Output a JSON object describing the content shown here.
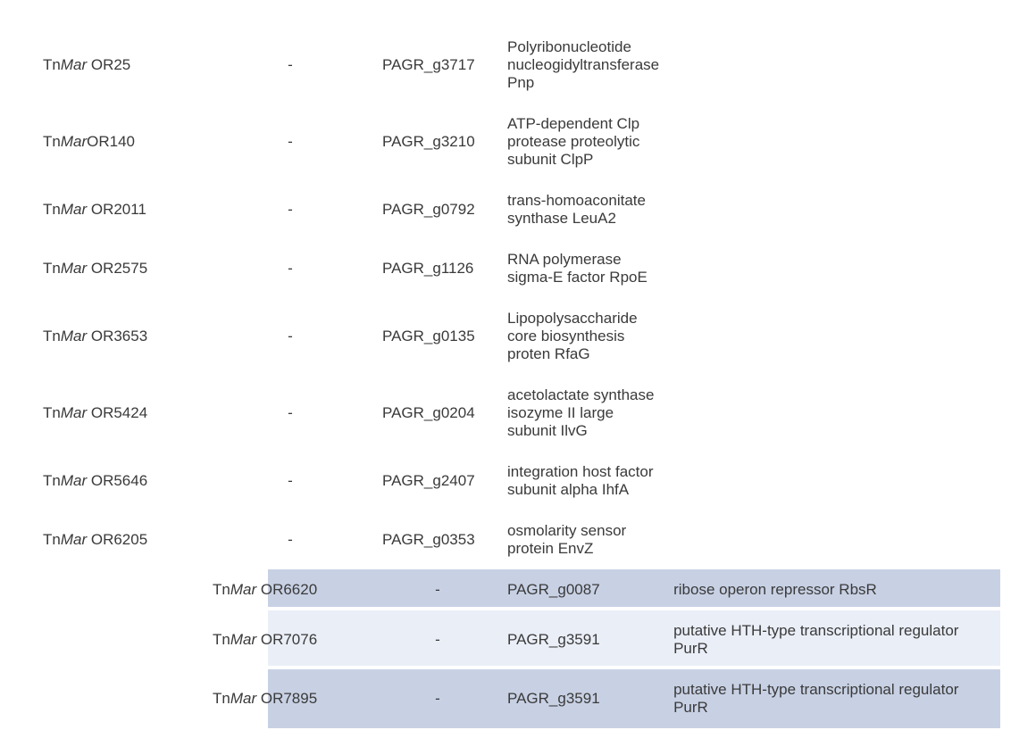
{
  "table": {
    "rows": [
      {
        "prefix": "Tn",
        "italic": "Mar",
        "suffix": " OR25",
        "dash": "-",
        "geneId": "PAGR_g3717",
        "description": "Polyribonucleotide nucleogidyltransferase Pnp",
        "highlight": "none"
      },
      {
        "prefix": "Tn",
        "italic": "Mar",
        "suffix": "OR140",
        "dash": "-",
        "geneId": "PAGR_g3210",
        "description": "ATP-dependent Clp protease proteolytic subunit ClpP",
        "highlight": "none"
      },
      {
        "prefix": "Tn",
        "italic": "Mar",
        "suffix": " OR2011",
        "dash": "-",
        "geneId": "PAGR_g0792",
        "description": "trans-homoaconitate synthase LeuA2",
        "highlight": "none"
      },
      {
        "prefix": "Tn",
        "italic": "Mar",
        "suffix": " OR2575",
        "dash": "-",
        "geneId": "PAGR_g1126",
        "description": "RNA polymerase sigma-E factor RpoE",
        "highlight": "none"
      },
      {
        "prefix": "Tn",
        "italic": "Mar",
        "suffix": " OR3653",
        "dash": "-",
        "geneId": "PAGR_g0135",
        "description": "Lipopolysaccharide core biosynthesis proten  RfaG",
        "highlight": "none"
      },
      {
        "prefix": "Tn",
        "italic": "Mar",
        "suffix": " OR5424",
        "dash": "-",
        "geneId": "PAGR_g0204",
        "description": "acetolactate synthase isozyme II large subunit  IlvG",
        "highlight": "none"
      },
      {
        "prefix": "Tn",
        "italic": "Mar",
        "suffix": " OR5646",
        "dash": "-",
        "geneId": "PAGR_g2407",
        "description": "integration host factor subunit alpha IhfA",
        "highlight": "none"
      },
      {
        "prefix": "Tn",
        "italic": "Mar",
        "suffix": " OR6205",
        "dash": "-",
        "geneId": "PAGR_g0353",
        "description": "osmolarity sensor protein EnvZ",
        "highlight": "none"
      },
      {
        "prefix": "Tn",
        "italic": "Mar",
        "suffix": " OR6620",
        "dash": "-",
        "geneId": "PAGR_g0087",
        "description": "ribose operon repressor RbsR",
        "highlight": "dark"
      },
      {
        "prefix": "Tn",
        "italic": "Mar",
        "suffix": " OR7076",
        "dash": "-",
        "geneId": "PAGR_g3591",
        "description": "putative HTH-type transcriptional regulator PurR",
        "highlight": "light"
      },
      {
        "prefix": "Tn",
        "italic": "Mar",
        "suffix": " OR7895",
        "dash": "-",
        "geneId": "PAGR_g3591",
        "description": "putative HTH-type transcriptional regulator PurR",
        "highlight": "dark"
      }
    ],
    "colors": {
      "darkHighlight": "#c8d1e4",
      "lightHighlight": "#eaeef7",
      "background": "#ffffff",
      "text": "#3a3a3a"
    },
    "fontSize": 17,
    "columnWidths": {
      "col1": 190,
      "col2": 90,
      "col3": 140
    }
  }
}
